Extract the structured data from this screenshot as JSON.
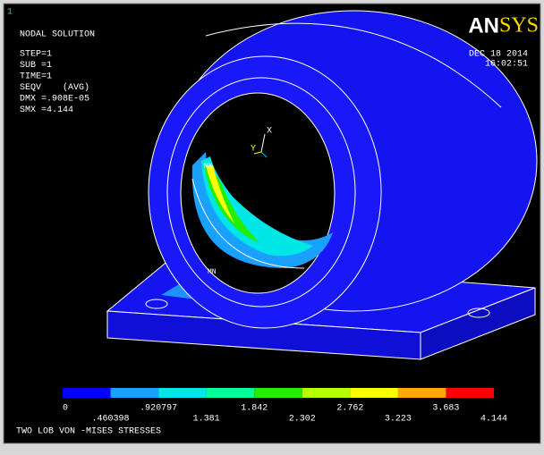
{
  "header": {
    "window_number": "1",
    "title": "NODAL SOLUTION",
    "lines": [
      "STEP=1",
      "SUB =1",
      "TIME=1",
      "SEQV    (AVG)",
      "DMX =.908E-05",
      "SMX =4.144"
    ]
  },
  "logo": {
    "part1": "AN",
    "part2": "SYS"
  },
  "timestamp": {
    "date": "DEC 18 2014",
    "time": "16:02:51"
  },
  "model_labels": {
    "x_axis": "X",
    "y_axis": "Y",
    "max": "MX",
    "min": "MN"
  },
  "legend": {
    "colors": [
      "#0000ff",
      "#1aa0ff",
      "#00e6e6",
      "#00ff99",
      "#22ee00",
      "#b4ff00",
      "#ffff00",
      "#ffaa00",
      "#ff0000"
    ],
    "labels": [
      "0",
      ".460398",
      ".920797",
      "1.381",
      "1.842",
      "2.302",
      "2.762",
      "3.223",
      "3.683",
      "4.144"
    ]
  },
  "footer": {
    "title": "TWO LOB VON -MISES STRESSES"
  }
}
